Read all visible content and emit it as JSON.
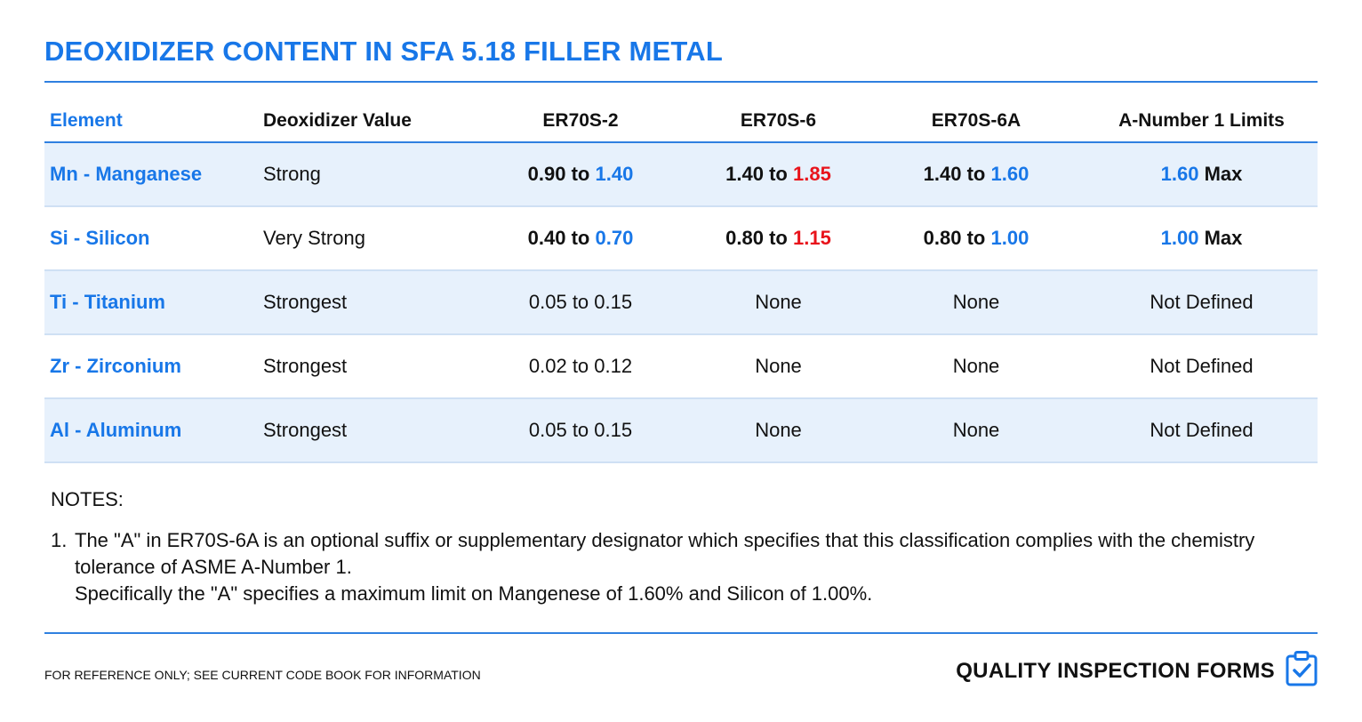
{
  "title": "DEOXIDIZER CONTENT IN SFA 5.18 FILLER METAL",
  "table": {
    "headers": [
      "Element",
      "Deoxidizer Value",
      "ER70S-2",
      "ER70S-6",
      "ER70S-6A",
      "A-Number 1 Limits"
    ],
    "rows": [
      {
        "element": "Mn - Manganese",
        "value": "Strong",
        "er70s2": {
          "low": "0.90",
          "to": "to",
          "high": "1.40"
        },
        "er70s6": {
          "low": "1.40",
          "to": "to",
          "high": "1.85"
        },
        "er70s6a": {
          "low": "1.40",
          "to": "to",
          "high": "1.60"
        },
        "limit": {
          "value": "1.60",
          "suffix": "Max"
        }
      },
      {
        "element": "Si - Silicon",
        "value": "Very Strong",
        "er70s2": {
          "low": "0.40",
          "to": "to",
          "high": "0.70"
        },
        "er70s6": {
          "low": "0.80",
          "to": "to",
          "high": "1.15"
        },
        "er70s6a": {
          "low": "0.80",
          "to": "to",
          "high": "1.00"
        },
        "limit": {
          "value": "1.00",
          "suffix": "Max"
        }
      },
      {
        "element": "Ti - Titanium",
        "value": "Strongest",
        "er70s2": "0.05 to 0.15",
        "er70s6": "None",
        "er70s6a": "None",
        "limit": "Not Defined"
      },
      {
        "element": "Zr - Zirconium",
        "value": "Strongest",
        "er70s2": "0.02 to 0.12",
        "er70s6": "None",
        "er70s6a": "None",
        "limit": "Not Defined"
      },
      {
        "element": "Al - Aluminum",
        "value": "Strongest",
        "er70s2": "0.05 to 0.15",
        "er70s6": "None",
        "er70s6a": "None",
        "limit": "Not Defined"
      }
    ]
  },
  "notes": {
    "heading": "NOTES:",
    "items": [
      {
        "number": "1.",
        "line1": "The \"A\" in ER70S-6A is an optional suffix or supplementary designator which specifies that this classification complies with the chemistry tolerance of ASME A-Number 1.",
        "line2": "Specifically the \"A\" specifies a maximum limit on Mangenese of 1.60% and Silicon of 1.00%."
      }
    ]
  },
  "footer": {
    "disclaimer": "FOR REFERENCE ONLY; SEE CURRENT CODE BOOK FOR INFORMATION",
    "brand": "QUALITY INSPECTION FORMS",
    "brand_icon": "clipboard-check-icon"
  },
  "colors": {
    "accent_blue": "#1877e8",
    "alert_red": "#e8131b",
    "row_shade": "#e7f1fc"
  }
}
